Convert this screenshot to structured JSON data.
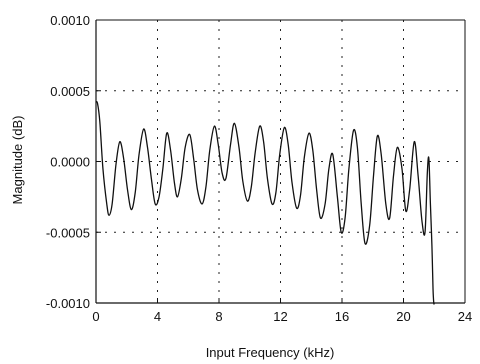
{
  "chart_data": {
    "type": "line",
    "title": "",
    "xlabel": "Input Frequency (kHz)",
    "ylabel": "Magnitude (dB)",
    "xlim": [
      0,
      24
    ],
    "ylim": [
      -0.001,
      0.001
    ],
    "x_ticks": [
      0,
      4,
      8,
      12,
      16,
      20,
      24
    ],
    "x_tick_labels": [
      "0",
      "4",
      "8",
      "12",
      "16",
      "20",
      "24"
    ],
    "y_ticks": [
      -0.001,
      -0.0005,
      0.0,
      0.0005,
      0.001
    ],
    "y_tick_labels": [
      "-0.0010",
      "-0.0005",
      "0.0000",
      "0.0005",
      "0.0010"
    ],
    "grid": true,
    "grid_style": "dashed",
    "series": [
      {
        "color": "#111111",
        "x": [
          0.0,
          0.1,
          0.25,
          0.45,
          0.7,
          0.85,
          1.05,
          1.3,
          1.55,
          1.8,
          2.05,
          2.3,
          2.55,
          2.8,
          3.1,
          3.35,
          3.6,
          3.85,
          4.1,
          4.35,
          4.6,
          4.85,
          5.1,
          5.3,
          5.55,
          5.8,
          6.1,
          6.35,
          6.6,
          6.9,
          7.15,
          7.4,
          7.7,
          7.95,
          8.2,
          8.45,
          8.75,
          9.0,
          9.3,
          9.55,
          9.85,
          10.1,
          10.35,
          10.65,
          10.9,
          11.15,
          11.45,
          11.7,
          11.95,
          12.25,
          12.5,
          12.75,
          13.05,
          13.3,
          13.55,
          13.85,
          14.1,
          14.35,
          14.6,
          14.9,
          15.15,
          15.4,
          15.7,
          15.95,
          16.2,
          16.45,
          16.75,
          17.0,
          17.25,
          17.5,
          17.8,
          18.05,
          18.3,
          18.55,
          18.85,
          19.1,
          19.35,
          19.6,
          19.9,
          20.15,
          20.4,
          20.7,
          20.95,
          21.2,
          21.4,
          21.55,
          21.65,
          21.75,
          21.85,
          21.92,
          21.97,
          22.0
        ],
        "y": [
          0.00042,
          0.00041,
          0.00028,
          -5e-05,
          -0.0003,
          -0.00038,
          -0.0003,
          -2e-05,
          0.00014,
          2e-05,
          -0.0002,
          -0.00034,
          -0.00022,
          5e-05,
          0.00023,
          0.0001,
          -0.00012,
          -0.0003,
          -0.00025,
          -5e-05,
          0.0002,
          8e-05,
          -0.00015,
          -0.00025,
          -0.00012,
          0.0001,
          0.00019,
          2e-05,
          -0.0002,
          -0.0003,
          -0.00018,
          8e-05,
          0.00025,
          0.00012,
          -8e-05,
          -0.00012,
          0.00012,
          0.00027,
          0.0001,
          -0.00014,
          -0.00028,
          -0.00018,
          6e-05,
          0.00025,
          0.00014,
          -0.00012,
          -0.0003,
          -0.00022,
          5e-05,
          0.00024,
          0.00012,
          -0.00015,
          -0.00033,
          -0.00024,
          3e-05,
          0.0002,
          8e-05,
          -0.0002,
          -0.0004,
          -0.0003,
          -5e-05,
          5e-05,
          -0.00025,
          -0.0005,
          -0.0004,
          -5e-05,
          0.00022,
          0.0001,
          -0.0003,
          -0.00058,
          -0.00045,
          -0.0001,
          0.00018,
          5e-05,
          -0.0003,
          -0.0004,
          -0.0001,
          0.0001,
          -5e-05,
          -0.00035,
          -0.0002,
          0.00014,
          -0.0001,
          -0.00042,
          -0.0005,
          -8e-05,
          2e-05,
          -0.0003,
          -0.0006,
          -0.0009,
          -0.001,
          -0.001
        ]
      }
    ]
  }
}
